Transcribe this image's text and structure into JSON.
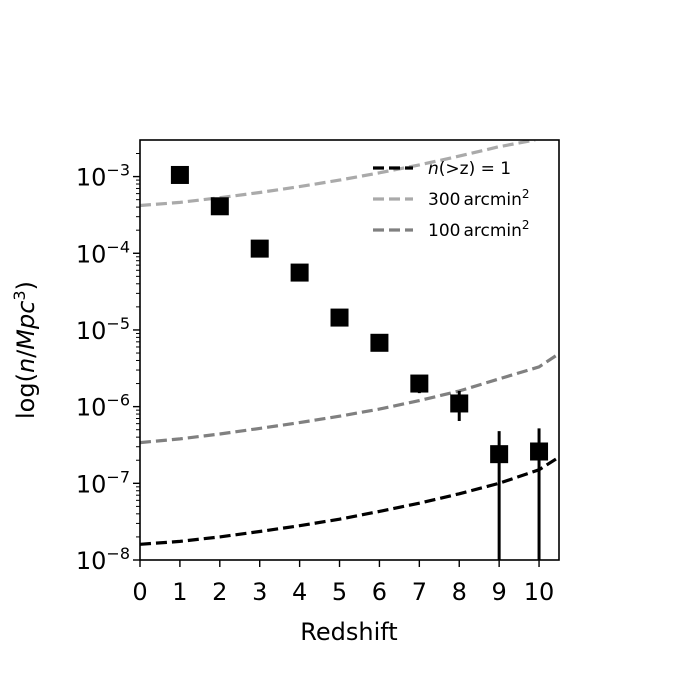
{
  "chart_data": {
    "type": "scatter",
    "xlabel": "Redshift",
    "ylabel": "log(n/Mpc³)",
    "xlim": [
      0,
      10.5
    ],
    "ylim": [
      1e-08,
      0.003
    ],
    "yscale": "log",
    "grid": false,
    "legend_position": "top-right",
    "x_ticks": [
      "0",
      "1",
      "2",
      "3",
      "4",
      "5",
      "6",
      "7",
      "8",
      "9",
      "10"
    ],
    "y_ticks": [
      {
        "value": 1e-08,
        "base": "10",
        "exp": "−8"
      },
      {
        "value": 1e-07,
        "base": "10",
        "exp": "−7"
      },
      {
        "value": 1e-06,
        "base": "10",
        "exp": "−6"
      },
      {
        "value": 1e-05,
        "base": "10",
        "exp": "−5"
      },
      {
        "value": 0.0001,
        "base": "10",
        "exp": "−4"
      },
      {
        "value": 0.001,
        "base": "10",
        "exp": "−3"
      }
    ],
    "points": {
      "color": "#000000",
      "marker": "square",
      "data": [
        {
          "x": 1,
          "y": 0.00105
        },
        {
          "x": 2,
          "y": 0.00041
        },
        {
          "x": 3,
          "y": 0.000115
        },
        {
          "x": 4,
          "y": 5.6e-05
        },
        {
          "x": 5,
          "y": 1.45e-05
        },
        {
          "x": 6,
          "y": 6.8e-06
        },
        {
          "x": 7,
          "y": 2e-06,
          "ylow": 1.5e-06,
          "yhigh": 2.5e-06
        },
        {
          "x": 8,
          "y": 1.1e-06,
          "ylow": 6.5e-07,
          "yhigh": 1.6e-06
        },
        {
          "x": 9,
          "y": 2.4e-07,
          "ylow": 1e-09,
          "yhigh": 4.8e-07
        },
        {
          "x": 10,
          "y": 2.6e-07,
          "ylow": 1e-09,
          "yhigh": 5.2e-07
        }
      ]
    },
    "series": [
      {
        "name": "n(>z)=1",
        "name_parts": {
          "prefix": "n",
          "mid": "(>z) = 1"
        },
        "color": "#000000",
        "style": "dashed",
        "x": [
          0,
          1,
          2,
          3,
          4,
          5,
          6,
          7,
          8,
          9,
          10,
          10.5
        ],
        "y": [
          1.6e-08,
          1.75e-08,
          2e-08,
          2.35e-08,
          2.8e-08,
          3.4e-08,
          4.3e-08,
          5.5e-08,
          7.3e-08,
          1e-07,
          1.5e-07,
          2.2e-07
        ]
      },
      {
        "name": "300 arcmin²",
        "name_parts": {
          "number": "300",
          "unit": "arcmin",
          "sup": "2"
        },
        "color": "#aaaaaa",
        "style": "dashed",
        "x": [
          0,
          1,
          2,
          3,
          4,
          5,
          6,
          7,
          8,
          9,
          9.9
        ],
        "y": [
          0.00042,
          0.00046,
          0.00053,
          0.00062,
          0.00074,
          0.0009,
          0.00112,
          0.00142,
          0.00185,
          0.00245,
          0.003
        ]
      },
      {
        "name": "100 arcmin²",
        "name_parts": {
          "number": "100",
          "unit": "arcmin",
          "sup": "2"
        },
        "color": "#808080",
        "style": "dashed",
        "x": [
          0,
          1,
          2,
          3,
          4,
          5,
          6,
          7,
          8,
          9,
          10,
          10.5
        ],
        "y": [
          3.4e-07,
          3.8e-07,
          4.4e-07,
          5.2e-07,
          6.2e-07,
          7.5e-07,
          9.3e-07,
          1.2e-06,
          1.6e-06,
          2.3e-06,
          3.3e-06,
          4.9e-06
        ]
      }
    ]
  }
}
